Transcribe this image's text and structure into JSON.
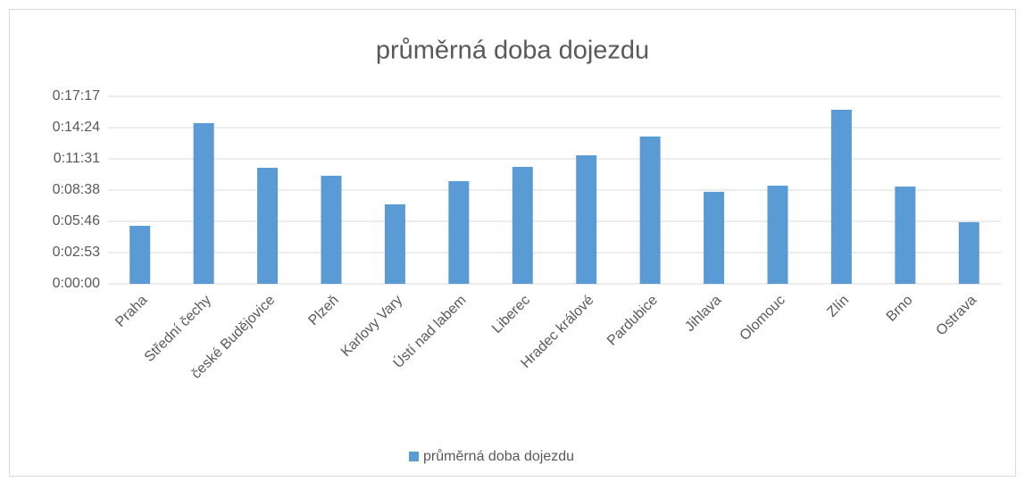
{
  "chart_data": {
    "type": "bar",
    "title": "průměrná doba dojezdu",
    "categories": [
      "Praha",
      "Střední čechy",
      "české Budějovice",
      "Plzeň",
      "Karlovy Vary",
      "Ústí nad labem",
      "Liberec",
      "Hradec králové",
      "Pardubice",
      "Jihlava",
      "Olomouc",
      "Zlín",
      "Brno",
      "Ostrava"
    ],
    "series": [
      {
        "name": "průměrná doba dojezdu",
        "color": "#5b9bd5",
        "values": [
          321,
          889,
          642,
          598,
          440,
          568,
          647,
          711,
          815,
          509,
          543,
          963,
          538,
          341
        ]
      }
    ],
    "ylim": [
      0,
      1036.8
    ],
    "yticks": [
      {
        "value": 0,
        "label": "0:00:00"
      },
      {
        "value": 172.8,
        "label": "0:02:53"
      },
      {
        "value": 345.6,
        "label": "0:05:46"
      },
      {
        "value": 518.4,
        "label": "0:08:38"
      },
      {
        "value": 691.2,
        "label": "0:11:31"
      },
      {
        "value": 864,
        "label": "0:14:24"
      },
      {
        "value": 1036.8,
        "label": "0:17:17"
      }
    ],
    "grid": true,
    "legend": "bottom"
  }
}
